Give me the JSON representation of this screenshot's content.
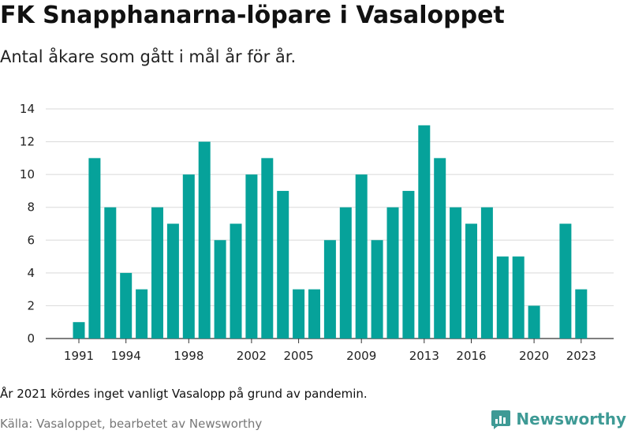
{
  "header": {
    "title": "FK Snapphanarna-löpare i Vasaloppet",
    "subtitle": "Antal åkare som gått i mål år för år."
  },
  "footer": {
    "note": "År 2021 kördes inget vanligt Vasalopp på grund av pandemin.",
    "source": "Källa: Vasaloppet, bearbetet av Newsworthy",
    "brand": "Newsworthy",
    "brand_icon": "newsworthy-logo-icon"
  },
  "colors": {
    "bar": "#06a29a",
    "grid": "#d9d9d9",
    "brand": "#3e9a95"
  },
  "chart_data": {
    "type": "bar",
    "categories": [
      1991,
      1992,
      1993,
      1994,
      1995,
      1996,
      1997,
      1998,
      1999,
      2000,
      2001,
      2002,
      2003,
      2004,
      2005,
      2006,
      2007,
      2008,
      2009,
      2010,
      2011,
      2012,
      2013,
      2014,
      2015,
      2016,
      2017,
      2018,
      2019,
      2020,
      2021,
      2022,
      2023
    ],
    "values": [
      1,
      11,
      8,
      4,
      3,
      8,
      7,
      10,
      12,
      6,
      7,
      10,
      11,
      9,
      3,
      3,
      6,
      8,
      10,
      6,
      8,
      9,
      13,
      11,
      8,
      7,
      8,
      5,
      5,
      2,
      0,
      7,
      3
    ],
    "x_tick_labels": [
      "1991",
      "1994",
      "1998",
      "2002",
      "2005",
      "2009",
      "2013",
      "2016",
      "2020",
      "2023"
    ],
    "y_ticks": [
      0,
      2,
      4,
      6,
      8,
      10,
      12,
      14
    ],
    "ylim": [
      0,
      14
    ],
    "grid": true,
    "legend": "none"
  }
}
